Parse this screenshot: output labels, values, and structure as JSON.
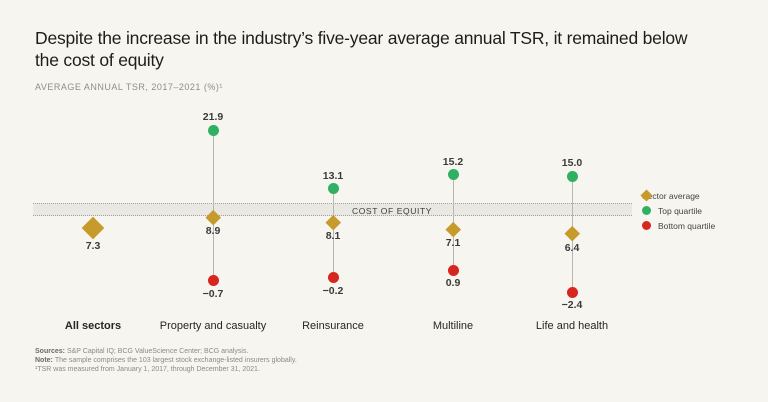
{
  "header": {
    "title": "Despite the increase in the industry’s five-year average annual TSR, it remained below the cost of equity",
    "subtitle": "AVERAGE ANNUAL TSR, 2017–2021 (%)¹"
  },
  "chart_data": {
    "type": "scatter",
    "title": "Average annual TSR, 2017-2021 (%)",
    "categories": [
      "All sectors",
      "Property and casualty",
      "Reinsurance",
      "Multiline",
      "Life and health"
    ],
    "category_emphasis": [
      true,
      false,
      false,
      false,
      false
    ],
    "series": [
      {
        "name": "Sector average",
        "role": "average",
        "marker": "diamond",
        "color": "#c79a2c",
        "values": [
          7.3,
          8.9,
          8.1,
          7.1,
          6.4
        ]
      },
      {
        "name": "Top quartile",
        "role": "top",
        "marker": "circle",
        "color": "#2fb062",
        "values": [
          null,
          21.9,
          13.1,
          15.2,
          15.0
        ]
      },
      {
        "name": "Bottom quartile",
        "role": "bottom",
        "marker": "circle",
        "color": "#d7261e",
        "values": [
          null,
          -0.7,
          -0.2,
          0.9,
          -2.4
        ]
      }
    ],
    "band": {
      "label": "COST OF EQUITY",
      "from": 9.0,
      "to": 11.0
    },
    "ylim": [
      -4,
      24
    ],
    "grid": false,
    "legend_position": "right"
  },
  "footer": {
    "sources_label": "Sources:",
    "sources_text": "S&P Capital IQ; BCG ValueScience Center; BCG analysis.",
    "note_label": "Note:",
    "note_text": "The sample comprises the 103 largest stock exchange-listed insurers globally.",
    "footnote": "¹TSR was measured from January 1, 2017, through December 31, 2021."
  },
  "colors": {
    "background": "#f6f5f0",
    "band_fill": "#e9e8e3",
    "gold": "#c79a2c",
    "green": "#2fb062",
    "red": "#d7261e"
  }
}
